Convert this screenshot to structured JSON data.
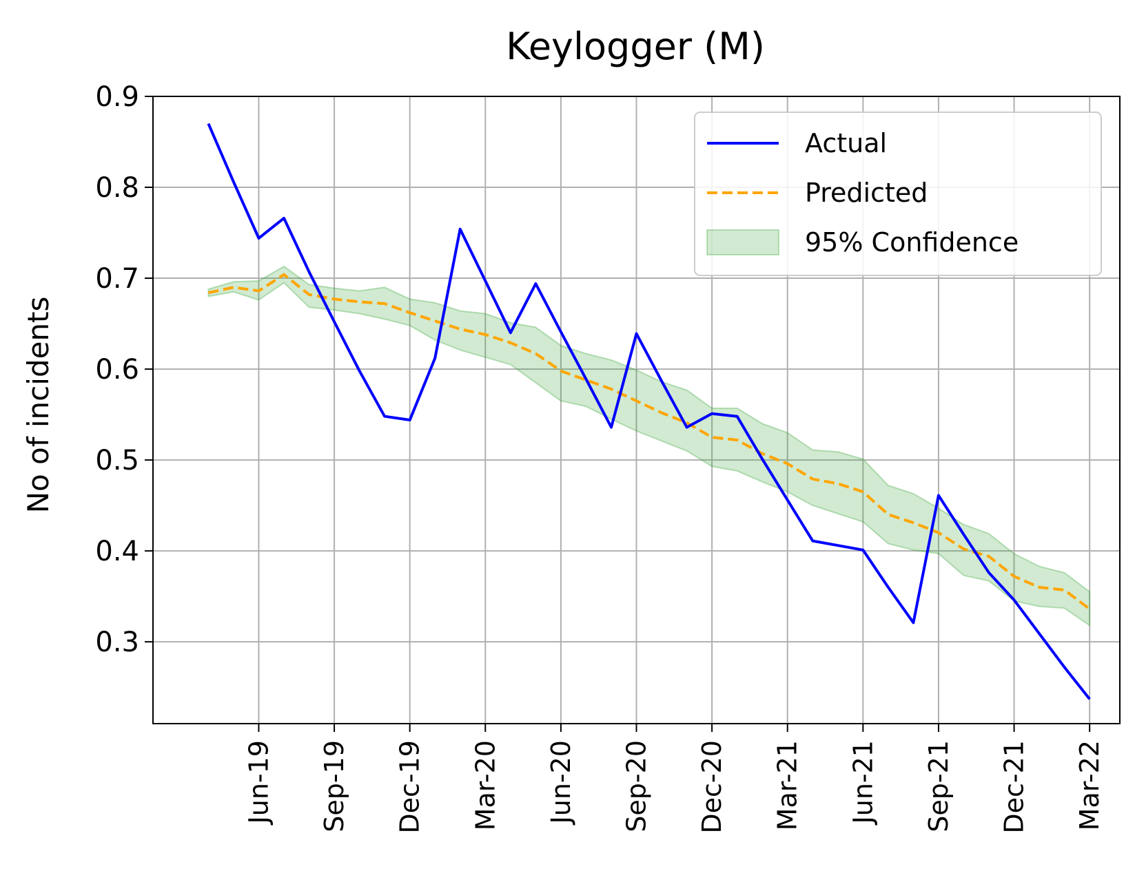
{
  "chart_data": {
    "type": "line",
    "title": "Keylogger (M)",
    "xlabel": "",
    "ylabel": "No of incidents",
    "x_ticks": [
      "Jun-19",
      "Sep-19",
      "Dec-19",
      "Mar-20",
      "Jun-20",
      "Sep-20",
      "Dec-20",
      "Mar-21",
      "Jun-21",
      "Sep-21",
      "Dec-21",
      "Mar-22"
    ],
    "y_ticks": [
      "0.3",
      "0.4",
      "0.5",
      "0.6",
      "0.7",
      "0.8",
      "0.9"
    ],
    "ylim": [
      0.21,
      0.9
    ],
    "xlim": [
      "Feb-19",
      "Apr-22"
    ],
    "grid": true,
    "legend_position": "top-right",
    "x": [
      "Apr-19",
      "May-19",
      "Jun-19",
      "Jul-19",
      "Aug-19",
      "Sep-19",
      "Oct-19",
      "Nov-19",
      "Dec-19",
      "Jan-20",
      "Feb-20",
      "Mar-20",
      "Apr-20",
      "May-20",
      "Jun-20",
      "Jul-20",
      "Aug-20",
      "Sep-20",
      "Oct-20",
      "Nov-20",
      "Dec-20",
      "Jan-21",
      "Feb-21",
      "Mar-21",
      "Apr-21",
      "May-21",
      "Jun-21",
      "Jul-21",
      "Aug-21",
      "Sep-21",
      "Oct-21",
      "Nov-21",
      "Dec-21",
      "Jan-22",
      "Feb-22",
      "Mar-22"
    ],
    "series": [
      {
        "name": "Actual",
        "color": "#0000ff",
        "style": "solid",
        "values": [
          0.87,
          0.806,
          0.744,
          0.766,
          0.707,
          0.652,
          0.598,
          0.548,
          0.544,
          0.612,
          0.754,
          0.697,
          0.64,
          0.694,
          0.641,
          0.589,
          0.536,
          0.639,
          0.587,
          0.536,
          0.551,
          0.548,
          0.501,
          0.456,
          0.411,
          0.406,
          0.401,
          0.36,
          0.321,
          0.461,
          0.418,
          0.376,
          0.346,
          0.309,
          0.272,
          0.237
        ]
      },
      {
        "name": "Predicted",
        "color": "#ffa500",
        "style": "dashed",
        "values": [
          0.684,
          0.69,
          0.686,
          0.704,
          0.682,
          0.677,
          0.674,
          0.672,
          0.662,
          0.653,
          0.644,
          0.638,
          0.629,
          0.617,
          0.598,
          0.588,
          0.578,
          0.565,
          0.552,
          0.541,
          0.525,
          0.522,
          0.507,
          0.496,
          0.479,
          0.474,
          0.465,
          0.44,
          0.431,
          0.42,
          0.402,
          0.394,
          0.372,
          0.36,
          0.357,
          0.336
        ]
      }
    ],
    "confidence_band": {
      "name": "95% Confidence",
      "color": "#2ca02c",
      "lower": [
        0.68,
        0.685,
        0.676,
        0.695,
        0.668,
        0.665,
        0.661,
        0.655,
        0.648,
        0.632,
        0.621,
        0.613,
        0.605,
        0.585,
        0.565,
        0.559,
        0.545,
        0.532,
        0.521,
        0.51,
        0.493,
        0.488,
        0.476,
        0.465,
        0.45,
        0.441,
        0.432,
        0.408,
        0.401,
        0.397,
        0.373,
        0.367,
        0.345,
        0.339,
        0.337,
        0.318
      ],
      "upper": [
        0.688,
        0.696,
        0.697,
        0.713,
        0.693,
        0.689,
        0.686,
        0.69,
        0.677,
        0.673,
        0.664,
        0.661,
        0.651,
        0.646,
        0.626,
        0.617,
        0.61,
        0.599,
        0.586,
        0.577,
        0.557,
        0.557,
        0.54,
        0.53,
        0.511,
        0.509,
        0.501,
        0.472,
        0.463,
        0.447,
        0.429,
        0.419,
        0.397,
        0.383,
        0.376,
        0.355
      ]
    }
  }
}
